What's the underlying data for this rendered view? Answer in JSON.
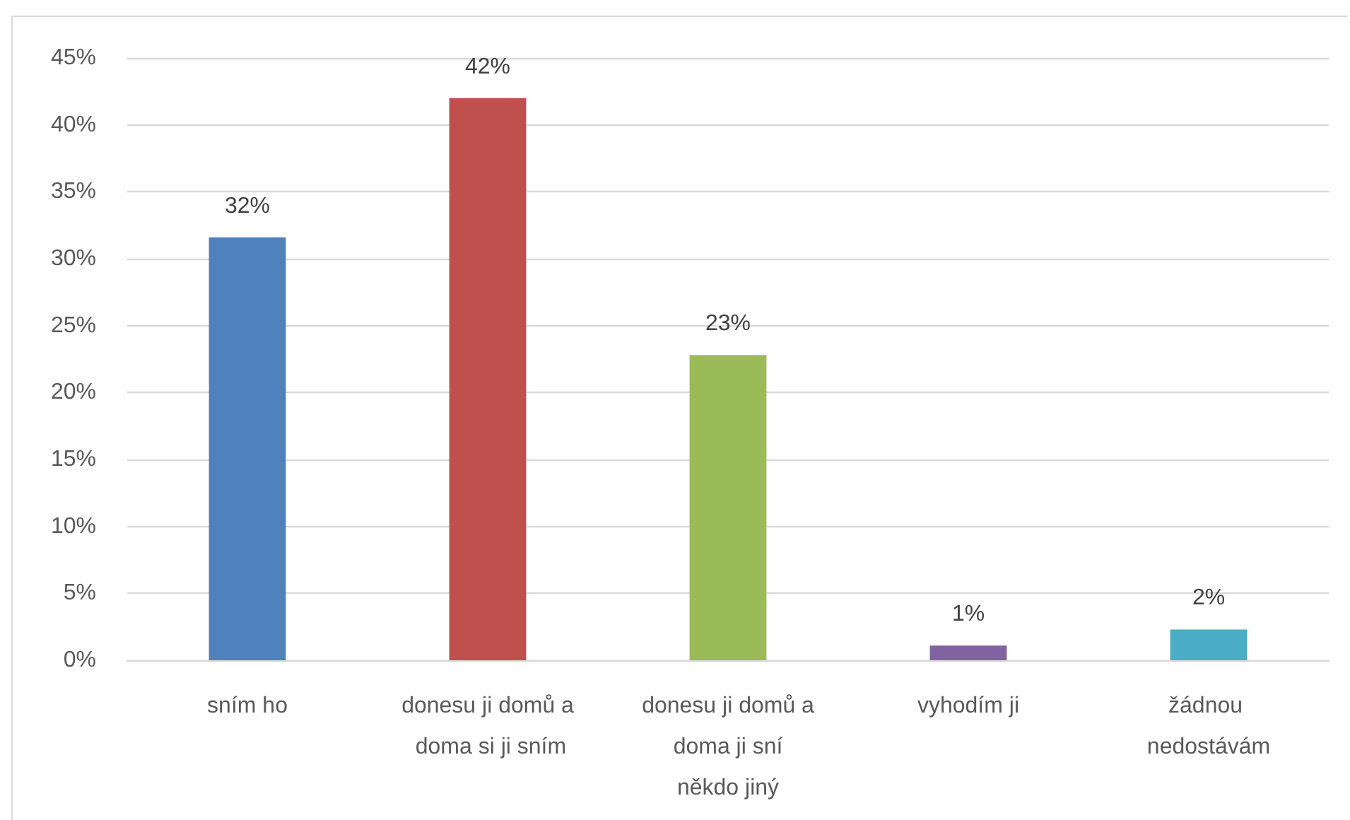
{
  "chart_data": {
    "type": "bar",
    "categories": [
      "sním ho",
      "donesu ji domů a doma si ji sním",
      "donesu ji domů a doma ji sní někdo jiný",
      "vyhodím ji",
      "žádnou nedostávám"
    ],
    "values": [
      31.6,
      42.0,
      22.8,
      1.1,
      2.3
    ],
    "colors": [
      "#4f81bd",
      "#c0504d",
      "#9bbb59",
      "#8064a2",
      "#4bacc6"
    ],
    "value_labels": [
      "32%",
      "42%",
      "23%",
      "1%",
      "2%"
    ],
    "ylim": [
      0,
      45
    ],
    "yticks": [
      {
        "value": 0,
        "label": "0%"
      },
      {
        "value": 5,
        "label": "5%"
      },
      {
        "value": 10,
        "label": "10%"
      },
      {
        "value": 15,
        "label": "15%"
      },
      {
        "value": 20,
        "label": "20%"
      },
      {
        "value": 25,
        "label": "25%"
      },
      {
        "value": 30,
        "label": "30%"
      },
      {
        "value": 35,
        "label": "35%"
      },
      {
        "value": 40,
        "label": "40%"
      },
      {
        "value": 45,
        "label": "45%"
      }
    ],
    "grid": "y"
  }
}
